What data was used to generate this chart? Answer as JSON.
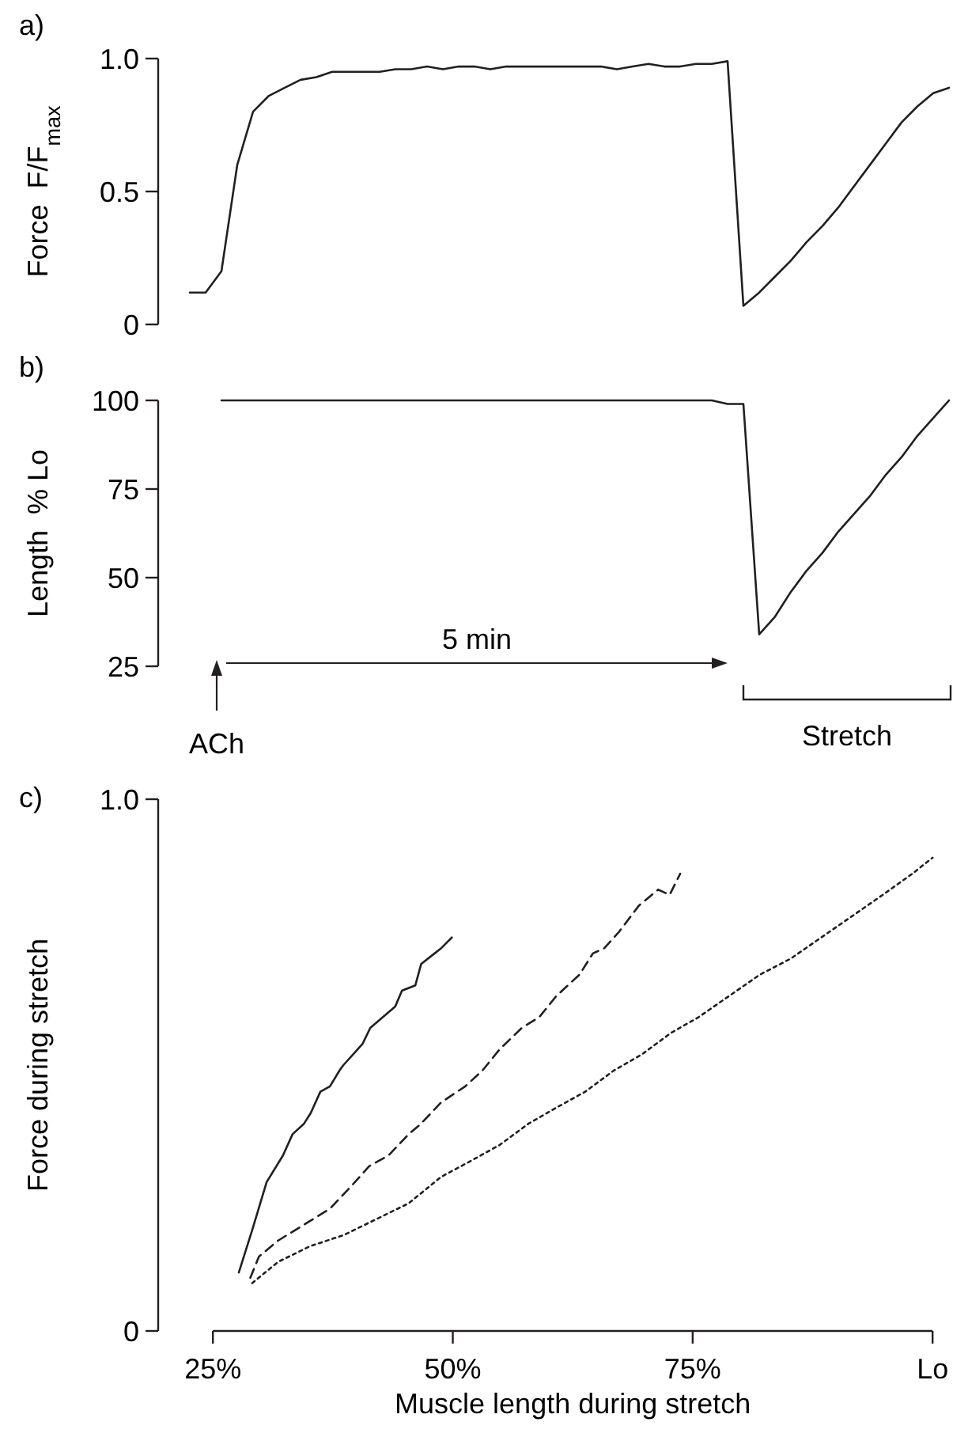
{
  "chart_data": [
    {
      "type": "line",
      "title": "a)",
      "ylabel": "Force  F/F$_{max}$",
      "color": "#231f20",
      "tick_labels": "y",
      "ylim": [
        0,
        1
      ],
      "yticks": [
        0,
        0.5,
        {
          "value": 1,
          "label": "1.0"
        }
      ],
      "categories": [
        null,
        null,
        null,
        null,
        null,
        null,
        null,
        null,
        null,
        null,
        null,
        null,
        null,
        null,
        null,
        null,
        null,
        null,
        null,
        null,
        null,
        null,
        null,
        null,
        null,
        null,
        null,
        null,
        null,
        null,
        null,
        null,
        null,
        null,
        null,
        null,
        null,
        null,
        null,
        null,
        null,
        null,
        null,
        null,
        null,
        null,
        null,
        null,
        null
      ],
      "values": [
        0.12,
        0.12,
        0.2,
        0.6,
        0.8,
        0.86,
        0.89,
        0.92,
        0.93,
        0.95,
        0.95,
        0.95,
        0.95,
        0.96,
        0.96,
        0.97,
        0.96,
        0.97,
        0.97,
        0.96,
        0.97,
        0.97,
        0.97,
        0.97,
        0.97,
        0.97,
        0.97,
        0.96,
        0.97,
        0.98,
        0.97,
        0.97,
        0.98,
        0.98,
        0.99,
        0.07,
        0.12,
        0.18,
        0.24,
        0.31,
        0.37,
        0.44,
        0.52,
        0.6,
        0.68,
        0.76,
        0.82,
        0.87,
        0.89
      ]
    },
    {
      "type": "line",
      "title": "b)",
      "ylabel": "Length  % Lo",
      "color": "#231f20",
      "tick_labels": "y",
      "ylim": [
        25,
        100
      ],
      "yticks": [
        25,
        50,
        75,
        100
      ],
      "annotations": [
        "5 min",
        "ACh",
        "Stretch"
      ],
      "categories": [
        null,
        null,
        null,
        null,
        null,
        null,
        null,
        null,
        null,
        null,
        null,
        null,
        null,
        null,
        null,
        null,
        null,
        null,
        null,
        null,
        null,
        null,
        null,
        null,
        null,
        null,
        null,
        null,
        null,
        null,
        null,
        null,
        null,
        null,
        null,
        null,
        null,
        null,
        null,
        null,
        null,
        null,
        null,
        null,
        null,
        null,
        null,
        null,
        null
      ],
      "values": [
        null,
        null,
        100,
        100,
        100,
        100,
        100,
        100,
        100,
        100,
        100,
        100,
        100,
        100,
        100,
        100,
        100,
        100,
        100,
        100,
        100,
        100,
        100,
        100,
        100,
        100,
        100,
        100,
        100,
        100,
        100,
        100,
        100,
        100,
        99,
        99,
        34,
        39,
        46,
        52,
        57,
        63,
        68,
        73,
        79,
        84,
        90,
        95,
        100
      ]
    },
    {
      "type": "line",
      "title": "c)",
      "xlabel": "Muscle length during stretch",
      "ylabel": "Force during stretch",
      "xlim": [
        25,
        100
      ],
      "xticks": [
        {
          "value": 25,
          "label": "25%"
        },
        {
          "value": 50,
          "label": "50%"
        },
        {
          "value": 75,
          "label": "75%"
        },
        {
          "value": 100,
          "label": "Lo"
        }
      ],
      "ylim": [
        0,
        1
      ],
      "yticks": [
        0,
        {
          "value": 1,
          "label": "1.0"
        }
      ],
      "series": [
        {
          "color": "#231f20",
          "line_style": "solid",
          "x": [
            27.7,
            29.1,
            30.6,
            32.3,
            33.3,
            34.5,
            35.2,
            36.2,
            37.2,
            38.2,
            38.6,
            39.6,
            40.6,
            41.4,
            42.7,
            44.0,
            44.7,
            46.1,
            46.7,
            48.1,
            48.8,
            49.9
          ],
          "values": [
            0.11,
            0.19,
            0.28,
            0.33,
            0.37,
            0.39,
            0.41,
            0.45,
            0.46,
            0.49,
            0.5,
            0.52,
            0.54,
            0.57,
            0.59,
            0.61,
            0.64,
            0.65,
            0.69,
            0.71,
            0.72,
            0.74
          ]
        },
        {
          "color": "#231f20",
          "line_style": "dashed",
          "x": [
            28.9,
            29.8,
            31.8,
            34.5,
            37.2,
            39.3,
            41.3,
            43.3,
            45.4,
            46.7,
            48.8,
            51.3,
            53.1,
            54.9,
            57.2,
            59.0,
            60.8,
            63.2,
            64.6,
            65.8,
            67.3,
            69.4,
            71.4,
            72.6,
            73.7
          ],
          "values": [
            0.1,
            0.14,
            0.17,
            0.2,
            0.23,
            0.27,
            0.31,
            0.33,
            0.37,
            0.39,
            0.43,
            0.46,
            0.49,
            0.53,
            0.57,
            0.59,
            0.63,
            0.67,
            0.71,
            0.72,
            0.75,
            0.8,
            0.83,
            0.82,
            0.86
          ]
        },
        {
          "color": "#231f20",
          "line_style": "dotted",
          "x": [
            29.1,
            31.8,
            35.2,
            38.6,
            42.0,
            45.4,
            48.8,
            51.9,
            54.9,
            57.9,
            60.8,
            63.8,
            66.8,
            69.7,
            72.7,
            75.6,
            78.8,
            82.0,
            85.2,
            88.4,
            91.6,
            94.8,
            97.9,
            100
          ],
          "values": [
            0.09,
            0.13,
            0.16,
            0.18,
            0.21,
            0.24,
            0.29,
            0.32,
            0.35,
            0.39,
            0.42,
            0.45,
            0.49,
            0.52,
            0.56,
            0.59,
            0.63,
            0.67,
            0.7,
            0.74,
            0.78,
            0.82,
            0.86,
            0.89
          ]
        }
      ]
    }
  ]
}
